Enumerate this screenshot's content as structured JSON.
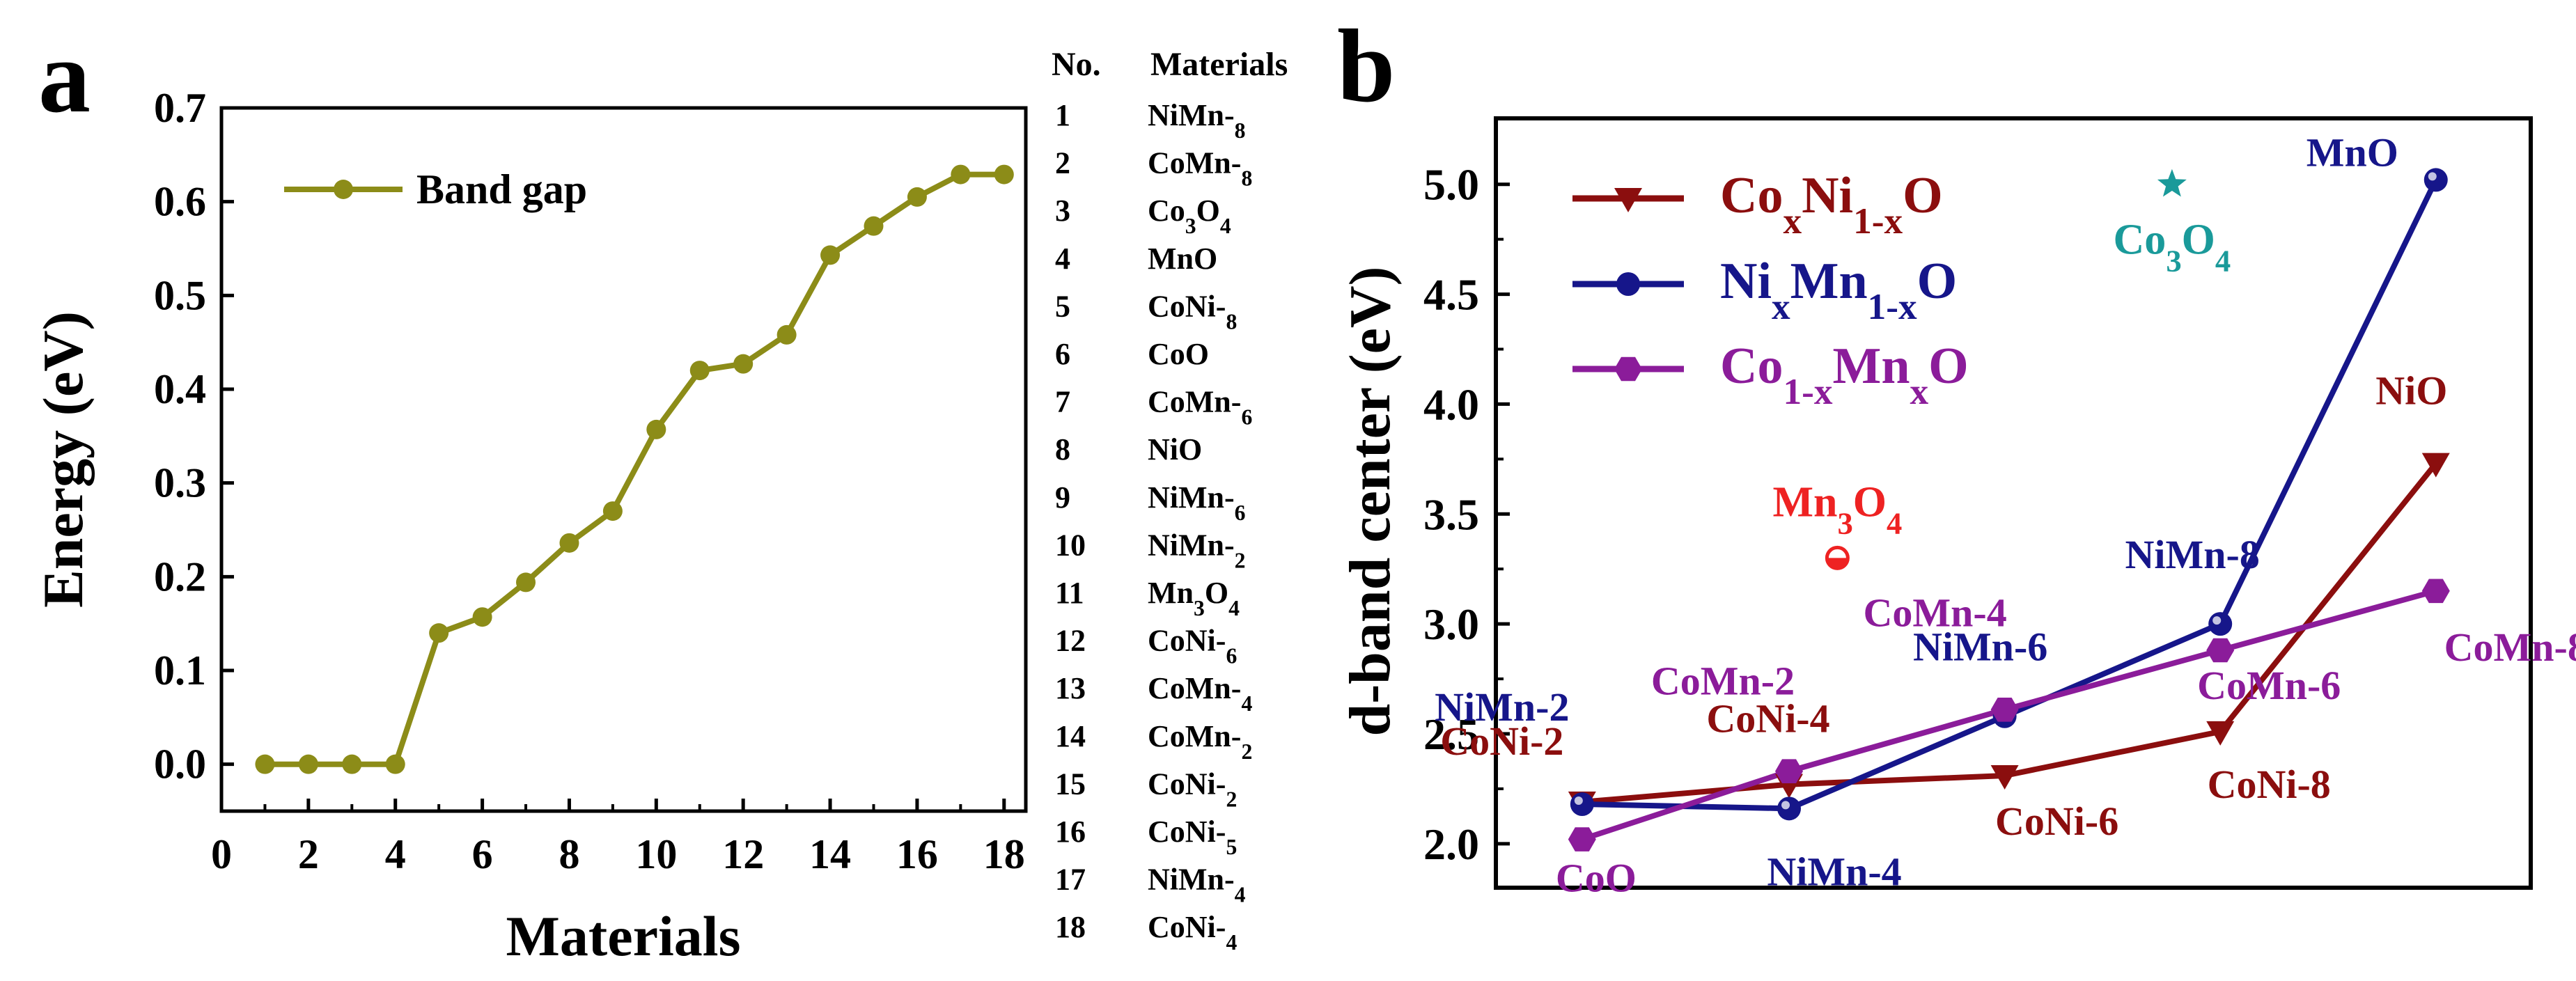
{
  "panel_a": {
    "label": "a",
    "legend": "Band gap",
    "line_color": "#8c8c18"
  },
  "panel_b": {
    "label": "b",
    "line_colors": {
      "CoNi": "#8b0e0e",
      "NiMn": "#16168a",
      "CoMn": "#8b1c9a",
      "Mn3O4": "#ee2222",
      "Co3O4": "#1a9a9a"
    }
  },
  "material_table": {
    "header_no": "No.",
    "header_materials": "Materials",
    "rows": [
      {
        "no": "1",
        "material": "NiMn-8"
      },
      {
        "no": "2",
        "material": "CoMn-8"
      },
      {
        "no": "3",
        "material": "Co3O4"
      },
      {
        "no": "4",
        "material": "MnO"
      },
      {
        "no": "5",
        "material": "CoNi-8"
      },
      {
        "no": "6",
        "material": "CoO"
      },
      {
        "no": "7",
        "material": "CoMn-6"
      },
      {
        "no": "8",
        "material": "NiO"
      },
      {
        "no": "9",
        "material": "NiMn-6"
      },
      {
        "no": "10",
        "material": "NiMn-2"
      },
      {
        "no": "11",
        "material": "Mn3O4"
      },
      {
        "no": "12",
        "material": "CoNi-6"
      },
      {
        "no": "13",
        "material": "CoMn-4"
      },
      {
        "no": "14",
        "material": "CoMn-2"
      },
      {
        "no": "15",
        "material": "CoNi-2"
      },
      {
        "no": "16",
        "material": "CoNi-5"
      },
      {
        "no": "17",
        "material": "NiMn-4"
      },
      {
        "no": "18",
        "material": "CoNi-4"
      }
    ]
  },
  "chart_data": [
    {
      "type": "line",
      "panel": "a",
      "xlabel": "Materials",
      "ylabel": "Energy (eV)",
      "xlim": [
        0,
        18.5
      ],
      "ylim": [
        -0.05,
        0.7
      ],
      "xticks": [
        0,
        2,
        4,
        6,
        8,
        10,
        12,
        14,
        16,
        18
      ],
      "yticks": [
        0.0,
        0.1,
        0.2,
        0.3,
        0.4,
        0.5,
        0.6,
        0.7
      ],
      "ytick_labels": [
        "0.0",
        "0.1",
        "0.2",
        "0.3",
        "0.4",
        "0.5",
        "0.6",
        "0.7"
      ],
      "series": [
        {
          "name": "Band gap",
          "x": [
            1,
            2,
            3,
            4,
            5,
            6,
            7,
            8,
            9,
            10,
            11,
            12,
            13,
            14,
            15,
            16,
            17,
            18
          ],
          "values": [
            0.0,
            0.0,
            0.0,
            0.0,
            0.14,
            0.157,
            0.194,
            0.236,
            0.27,
            0.357,
            0.42,
            0.427,
            0.458,
            0.543,
            0.574,
            0.605,
            0.629,
            0.629
          ]
        }
      ]
    },
    {
      "type": "line",
      "panel": "b",
      "xlabel": "",
      "ylabel": "d-band center (eV)",
      "xlim": [
        0,
        6
      ],
      "ylim": [
        1.8,
        5.3
      ],
      "yticks": [
        2.0,
        2.5,
        3.0,
        3.5,
        4.0,
        4.5,
        5.0
      ],
      "ytick_labels": [
        "2.0",
        "2.5",
        "3.0",
        "3.5",
        "4.0",
        "4.5",
        "5.0"
      ],
      "legend": [
        "CoxNi1-xO",
        "NixMn1-xO",
        "Co1-xMnxO"
      ],
      "series": [
        {
          "name": "CoxNi1-xO",
          "marker": "down-triangle",
          "x": [
            0.5,
            1.7,
            2.95,
            4.2,
            5.45
          ],
          "values": [
            2.19,
            2.27,
            2.31,
            2.51,
            3.73
          ],
          "labels": [
            "CoNi-2",
            "CoNi-4",
            "CoNi-6",
            "CoNi-8",
            "NiO"
          ]
        },
        {
          "name": "NixMn1-xO",
          "marker": "circle",
          "x": [
            0.5,
            1.7,
            2.95,
            4.2,
            5.45
          ],
          "values": [
            2.18,
            2.16,
            2.58,
            3.0,
            5.02
          ],
          "labels": [
            "NiMn-2",
            "NiMn-4",
            "NiMn-6",
            "NiMn-8",
            "MnO"
          ]
        },
        {
          "name": "Co1-xMnxO",
          "marker": "hexagon",
          "x": [
            0.5,
            1.7,
            2.95,
            4.2,
            5.45
          ],
          "values": [
            2.02,
            2.33,
            2.61,
            2.88,
            3.15
          ],
          "labels": [
            "CoO",
            "CoMn-2",
            "CoMn-4",
            "CoMn-6",
            "CoMn-8"
          ]
        }
      ],
      "points": [
        {
          "name": "Mn3O4",
          "marker": "half-circle",
          "x": 1.98,
          "value": 3.3
        },
        {
          "name": "Co3O4",
          "marker": "star",
          "x": 3.92,
          "value": 5.0
        }
      ]
    }
  ]
}
